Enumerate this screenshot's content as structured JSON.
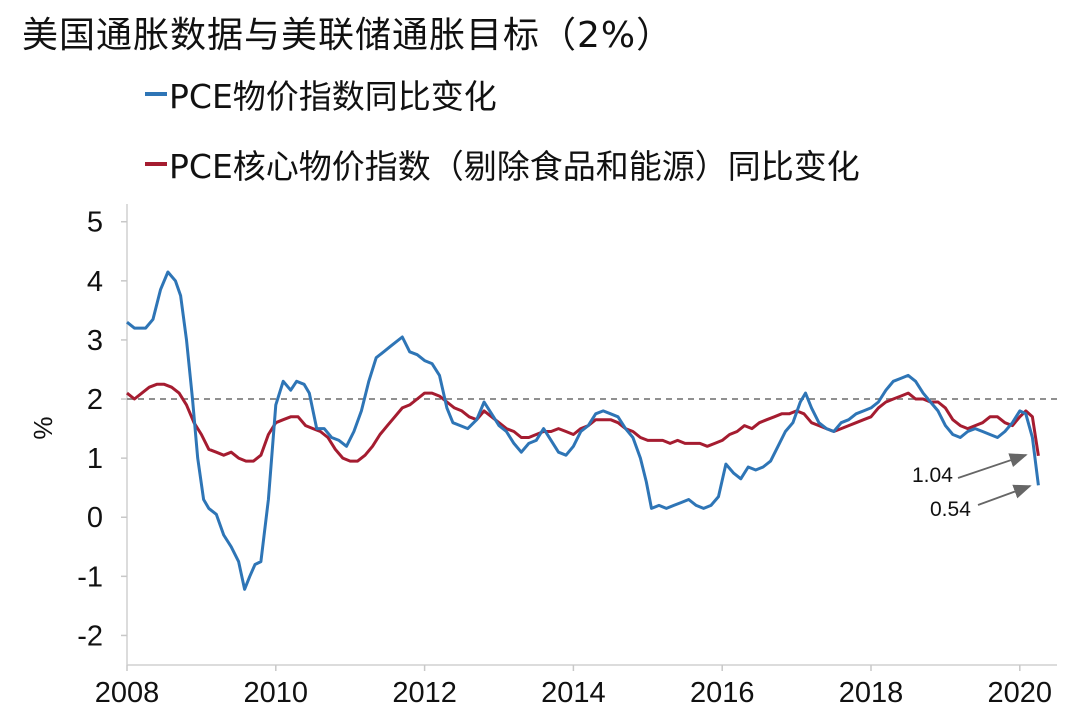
{
  "chart_data": {
    "type": "line",
    "title": "美国通胀数据与美联储通胀目标（2%）",
    "ylabel": "%",
    "ylim": [
      -2.5,
      5.3
    ],
    "xlim": [
      2008.0,
      2020.5
    ],
    "y_ticks": [
      "5",
      "4",
      "3",
      "2",
      "1",
      "0",
      "-1",
      "-2"
    ],
    "x_ticks": [
      "2008",
      "2010",
      "2012",
      "2014",
      "2016",
      "2018",
      "2020"
    ],
    "reference_line": {
      "y": 2,
      "style": "dashed"
    },
    "legend": "top-left",
    "series": [
      {
        "name": "PCE物价指数同比变化",
        "color": "#2e75b6",
        "points": [
          [
            2008.0,
            3.3
          ],
          [
            2008.1,
            3.2
          ],
          [
            2008.25,
            3.2
          ],
          [
            2008.35,
            3.35
          ],
          [
            2008.45,
            3.85
          ],
          [
            2008.55,
            4.15
          ],
          [
            2008.65,
            4.0
          ],
          [
            2008.72,
            3.75
          ],
          [
            2008.8,
            3.0
          ],
          [
            2008.88,
            2.0
          ],
          [
            2008.95,
            1.0
          ],
          [
            2009.03,
            0.3
          ],
          [
            2009.1,
            0.15
          ],
          [
            2009.2,
            0.05
          ],
          [
            2009.3,
            -0.3
          ],
          [
            2009.4,
            -0.5
          ],
          [
            2009.5,
            -0.75
          ],
          [
            2009.58,
            -1.22
          ],
          [
            2009.65,
            -1.0
          ],
          [
            2009.72,
            -0.8
          ],
          [
            2009.8,
            -0.75
          ],
          [
            2009.9,
            0.3
          ],
          [
            2010.0,
            1.9
          ],
          [
            2010.1,
            2.3
          ],
          [
            2010.2,
            2.15
          ],
          [
            2010.28,
            2.3
          ],
          [
            2010.38,
            2.25
          ],
          [
            2010.45,
            2.1
          ],
          [
            2010.55,
            1.5
          ],
          [
            2010.65,
            1.5
          ],
          [
            2010.75,
            1.35
          ],
          [
            2010.85,
            1.3
          ],
          [
            2010.95,
            1.2
          ],
          [
            2011.05,
            1.45
          ],
          [
            2011.15,
            1.8
          ],
          [
            2011.25,
            2.3
          ],
          [
            2011.35,
            2.7
          ],
          [
            2011.45,
            2.8
          ],
          [
            2011.55,
            2.9
          ],
          [
            2011.7,
            3.05
          ],
          [
            2011.8,
            2.8
          ],
          [
            2011.9,
            2.75
          ],
          [
            2012.0,
            2.65
          ],
          [
            2012.1,
            2.6
          ],
          [
            2012.2,
            2.4
          ],
          [
            2012.3,
            1.85
          ],
          [
            2012.38,
            1.6
          ],
          [
            2012.48,
            1.55
          ],
          [
            2012.58,
            1.5
          ],
          [
            2012.7,
            1.65
          ],
          [
            2012.8,
            1.95
          ],
          [
            2012.9,
            1.75
          ],
          [
            2013.0,
            1.55
          ],
          [
            2013.1,
            1.45
          ],
          [
            2013.2,
            1.25
          ],
          [
            2013.3,
            1.1
          ],
          [
            2013.4,
            1.25
          ],
          [
            2013.5,
            1.3
          ],
          [
            2013.6,
            1.5
          ],
          [
            2013.7,
            1.3
          ],
          [
            2013.8,
            1.1
          ],
          [
            2013.9,
            1.05
          ],
          [
            2014.0,
            1.2
          ],
          [
            2014.1,
            1.45
          ],
          [
            2014.2,
            1.55
          ],
          [
            2014.3,
            1.75
          ],
          [
            2014.4,
            1.8
          ],
          [
            2014.5,
            1.75
          ],
          [
            2014.6,
            1.7
          ],
          [
            2014.7,
            1.5
          ],
          [
            2014.8,
            1.35
          ],
          [
            2014.9,
            1.0
          ],
          [
            2014.98,
            0.6
          ],
          [
            2015.05,
            0.15
          ],
          [
            2015.15,
            0.2
          ],
          [
            2015.25,
            0.15
          ],
          [
            2015.35,
            0.2
          ],
          [
            2015.45,
            0.25
          ],
          [
            2015.55,
            0.3
          ],
          [
            2015.65,
            0.2
          ],
          [
            2015.75,
            0.15
          ],
          [
            2015.85,
            0.2
          ],
          [
            2015.95,
            0.35
          ],
          [
            2016.05,
            0.9
          ],
          [
            2016.15,
            0.75
          ],
          [
            2016.25,
            0.65
          ],
          [
            2016.35,
            0.85
          ],
          [
            2016.45,
            0.8
          ],
          [
            2016.55,
            0.85
          ],
          [
            2016.65,
            0.95
          ],
          [
            2016.75,
            1.2
          ],
          [
            2016.85,
            1.45
          ],
          [
            2016.95,
            1.6
          ],
          [
            2017.05,
            1.95
          ],
          [
            2017.12,
            2.1
          ],
          [
            2017.2,
            1.85
          ],
          [
            2017.3,
            1.6
          ],
          [
            2017.4,
            1.5
          ],
          [
            2017.5,
            1.45
          ],
          [
            2017.6,
            1.6
          ],
          [
            2017.7,
            1.65
          ],
          [
            2017.8,
            1.75
          ],
          [
            2017.9,
            1.8
          ],
          [
            2018.0,
            1.85
          ],
          [
            2018.1,
            1.95
          ],
          [
            2018.2,
            2.15
          ],
          [
            2018.3,
            2.3
          ],
          [
            2018.4,
            2.35
          ],
          [
            2018.5,
            2.4
          ],
          [
            2018.6,
            2.3
          ],
          [
            2018.7,
            2.1
          ],
          [
            2018.8,
            1.95
          ],
          [
            2018.9,
            1.8
          ],
          [
            2019.0,
            1.55
          ],
          [
            2019.1,
            1.4
          ],
          [
            2019.2,
            1.35
          ],
          [
            2019.3,
            1.45
          ],
          [
            2019.4,
            1.5
          ],
          [
            2019.5,
            1.45
          ],
          [
            2019.6,
            1.4
          ],
          [
            2019.7,
            1.35
          ],
          [
            2019.8,
            1.45
          ],
          [
            2019.9,
            1.6
          ],
          [
            2020.0,
            1.8
          ],
          [
            2020.08,
            1.75
          ],
          [
            2020.17,
            1.35
          ],
          [
            2020.25,
            0.54
          ]
        ]
      },
      {
        "name": "PCE核心物价指数（剔除食品和能源）同比变化",
        "color": "#a51c30",
        "points": [
          [
            2008.0,
            2.1
          ],
          [
            2008.1,
            2.0
          ],
          [
            2008.2,
            2.1
          ],
          [
            2008.3,
            2.2
          ],
          [
            2008.4,
            2.25
          ],
          [
            2008.5,
            2.25
          ],
          [
            2008.6,
            2.2
          ],
          [
            2008.7,
            2.1
          ],
          [
            2008.8,
            1.9
          ],
          [
            2008.9,
            1.6
          ],
          [
            2009.0,
            1.4
          ],
          [
            2009.1,
            1.15
          ],
          [
            2009.2,
            1.1
          ],
          [
            2009.3,
            1.05
          ],
          [
            2009.4,
            1.1
          ],
          [
            2009.5,
            1.0
          ],
          [
            2009.6,
            0.95
          ],
          [
            2009.7,
            0.95
          ],
          [
            2009.8,
            1.05
          ],
          [
            2009.9,
            1.4
          ],
          [
            2010.0,
            1.6
          ],
          [
            2010.1,
            1.65
          ],
          [
            2010.2,
            1.7
          ],
          [
            2010.3,
            1.7
          ],
          [
            2010.4,
            1.55
          ],
          [
            2010.5,
            1.5
          ],
          [
            2010.6,
            1.45
          ],
          [
            2010.7,
            1.35
          ],
          [
            2010.8,
            1.15
          ],
          [
            2010.9,
            1.0
          ],
          [
            2011.0,
            0.95
          ],
          [
            2011.1,
            0.95
          ],
          [
            2011.2,
            1.05
          ],
          [
            2011.3,
            1.2
          ],
          [
            2011.4,
            1.4
          ],
          [
            2011.5,
            1.55
          ],
          [
            2011.6,
            1.7
          ],
          [
            2011.7,
            1.85
          ],
          [
            2011.8,
            1.9
          ],
          [
            2011.9,
            2.0
          ],
          [
            2012.0,
            2.1
          ],
          [
            2012.1,
            2.1
          ],
          [
            2012.2,
            2.05
          ],
          [
            2012.3,
            1.95
          ],
          [
            2012.4,
            1.85
          ],
          [
            2012.5,
            1.8
          ],
          [
            2012.6,
            1.7
          ],
          [
            2012.7,
            1.65
          ],
          [
            2012.8,
            1.8
          ],
          [
            2012.9,
            1.7
          ],
          [
            2013.0,
            1.6
          ],
          [
            2013.1,
            1.5
          ],
          [
            2013.2,
            1.45
          ],
          [
            2013.3,
            1.35
          ],
          [
            2013.4,
            1.35
          ],
          [
            2013.5,
            1.4
          ],
          [
            2013.6,
            1.45
          ],
          [
            2013.7,
            1.45
          ],
          [
            2013.8,
            1.5
          ],
          [
            2013.9,
            1.45
          ],
          [
            2014.0,
            1.4
          ],
          [
            2014.1,
            1.5
          ],
          [
            2014.2,
            1.55
          ],
          [
            2014.3,
            1.65
          ],
          [
            2014.4,
            1.65
          ],
          [
            2014.5,
            1.65
          ],
          [
            2014.6,
            1.6
          ],
          [
            2014.7,
            1.5
          ],
          [
            2014.8,
            1.45
          ],
          [
            2014.9,
            1.35
          ],
          [
            2015.0,
            1.3
          ],
          [
            2015.1,
            1.3
          ],
          [
            2015.2,
            1.3
          ],
          [
            2015.3,
            1.25
          ],
          [
            2015.4,
            1.3
          ],
          [
            2015.5,
            1.25
          ],
          [
            2015.6,
            1.25
          ],
          [
            2015.7,
            1.25
          ],
          [
            2015.8,
            1.2
          ],
          [
            2015.9,
            1.25
          ],
          [
            2016.0,
            1.3
          ],
          [
            2016.1,
            1.4
          ],
          [
            2016.2,
            1.45
          ],
          [
            2016.3,
            1.55
          ],
          [
            2016.4,
            1.5
          ],
          [
            2016.5,
            1.6
          ],
          [
            2016.6,
            1.65
          ],
          [
            2016.7,
            1.7
          ],
          [
            2016.8,
            1.75
          ],
          [
            2016.9,
            1.75
          ],
          [
            2017.0,
            1.8
          ],
          [
            2017.1,
            1.75
          ],
          [
            2017.2,
            1.6
          ],
          [
            2017.3,
            1.55
          ],
          [
            2017.4,
            1.5
          ],
          [
            2017.5,
            1.45
          ],
          [
            2017.6,
            1.5
          ],
          [
            2017.7,
            1.55
          ],
          [
            2017.8,
            1.6
          ],
          [
            2017.9,
            1.65
          ],
          [
            2018.0,
            1.7
          ],
          [
            2018.1,
            1.85
          ],
          [
            2018.2,
            1.95
          ],
          [
            2018.3,
            2.0
          ],
          [
            2018.4,
            2.05
          ],
          [
            2018.5,
            2.1
          ],
          [
            2018.6,
            2.0
          ],
          [
            2018.7,
            2.0
          ],
          [
            2018.8,
            1.95
          ],
          [
            2018.9,
            1.95
          ],
          [
            2019.0,
            1.85
          ],
          [
            2019.1,
            1.65
          ],
          [
            2019.2,
            1.55
          ],
          [
            2019.3,
            1.5
          ],
          [
            2019.4,
            1.55
          ],
          [
            2019.5,
            1.6
          ],
          [
            2019.6,
            1.7
          ],
          [
            2019.7,
            1.7
          ],
          [
            2019.8,
            1.6
          ],
          [
            2019.9,
            1.55
          ],
          [
            2020.0,
            1.7
          ],
          [
            2020.08,
            1.8
          ],
          [
            2020.17,
            1.7
          ],
          [
            2020.25,
            1.04
          ]
        ]
      }
    ],
    "annotations": [
      {
        "text": "1.04",
        "series": 1,
        "x": 2020.25,
        "y": 1.04
      },
      {
        "text": "0.54",
        "series": 0,
        "x": 2020.25,
        "y": 0.54
      }
    ]
  }
}
